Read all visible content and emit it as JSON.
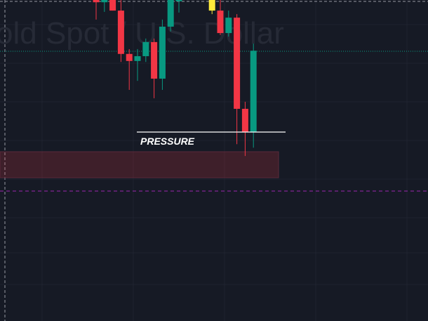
{
  "chart_data": {
    "type": "candlestick",
    "title": "old Spot / U.S. Dollar",
    "annotations": [
      "PRESSURE"
    ],
    "categories": [
      null,
      null,
      null,
      null,
      null,
      null,
      null,
      null,
      null,
      null,
      null,
      null,
      null,
      null,
      null,
      null,
      null,
      null,
      null,
      null
    ],
    "open": [
      100,
      99.3,
      100,
      96.7,
      83.2,
      81.0,
      82.5,
      86.9,
      75.5,
      91.7,
      99.6,
      null,
      null,
      null,
      96.7,
      96.7,
      89.7,
      94.5,
      66.1,
      58.9
    ],
    "high": [
      100,
      100,
      100,
      100,
      84.7,
      84.7,
      88.0,
      88.0,
      93.9,
      100,
      100,
      null,
      null,
      null,
      100,
      100,
      96.7,
      95.6,
      68.3,
      86.4
    ],
    "low": [
      93.9,
      96.3,
      96.7,
      80.7,
      72.0,
      74.8,
      80.7,
      69.4,
      72.0,
      90.2,
      96.1,
      null,
      null,
      null,
      95.6,
      89.1,
      88.6,
      55.1,
      51.4,
      54.0
    ],
    "close": [
      99.3,
      100,
      96.7,
      83.2,
      81.0,
      82.5,
      86.9,
      75.5,
      91.7,
      100,
      100,
      null,
      null,
      null,
      100,
      89.7,
      94.5,
      66.1,
      58.9,
      84.2
    ],
    "colors": [
      "#f23645",
      "#089981",
      "#f23645",
      "#f23645",
      "#f23645",
      "#089981",
      "#089981",
      "#f23645",
      "#089981",
      "#089981",
      "#089981",
      null,
      null,
      null,
      "#ffeb3b",
      "#f23645",
      "#089981",
      "#f23645",
      "#f23645",
      "#089981"
    ],
    "ylim": [
      0,
      100
    ]
  }
}
